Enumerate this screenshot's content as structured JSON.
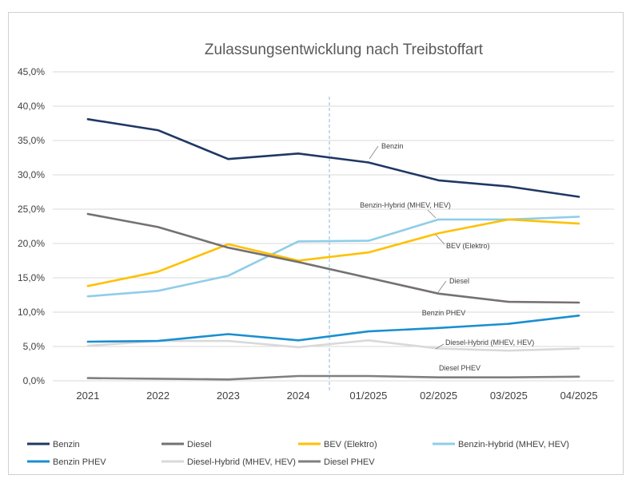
{
  "chart_data": {
    "type": "line",
    "title": "Zulassungsentwicklung nach Treibstoffart",
    "categories": [
      "2021",
      "2022",
      "2023",
      "2024",
      "01/2025",
      "02/2025",
      "03/2025",
      "04/2025"
    ],
    "y_ticks": [
      "0,0%",
      "5,0%",
      "10,0%",
      "15,0%",
      "20,0%",
      "25,0%",
      "30,0%",
      "35,0%",
      "40,0%",
      "45,0%"
    ],
    "ylim": [
      0,
      45
    ],
    "y_unit": "%",
    "grid": true,
    "legend_position": "bottom",
    "divider_after_category": "2024",
    "series": [
      {
        "name": "Benzin",
        "color": "#1f3864",
        "values": [
          38.1,
          36.5,
          32.3,
          33.1,
          31.8,
          29.2,
          28.3,
          26.8
        ],
        "label": "Benzin"
      },
      {
        "name": "Diesel",
        "color": "#767171",
        "values": [
          24.3,
          22.4,
          19.4,
          17.3,
          15.0,
          12.7,
          11.5,
          11.4
        ],
        "label": "Diesel"
      },
      {
        "name": "BEV (Elektro)",
        "color": "#ffc000",
        "values": [
          13.8,
          15.9,
          19.9,
          17.5,
          18.7,
          21.5,
          23.5,
          22.9
        ],
        "label": "BEV (Elektro)"
      },
      {
        "name": "Benzin-Hybrid (MHEV, HEV)",
        "color": "#8fcde8",
        "values": [
          12.3,
          13.1,
          15.3,
          20.3,
          20.4,
          23.5,
          23.5,
          23.9
        ],
        "label": "Benzin-Hybrid (MHEV, HEV)"
      },
      {
        "name": "Benzin PHEV",
        "color": "#1a8fd0",
        "values": [
          5.7,
          5.8,
          6.8,
          5.9,
          7.2,
          7.7,
          8.3,
          9.5
        ],
        "label": "Benzin PHEV"
      },
      {
        "name": "Diesel-Hybrid (MHEV, HEV)",
        "color": "#d9d9d9",
        "values": [
          5.1,
          5.8,
          5.8,
          4.9,
          5.9,
          4.7,
          4.4,
          4.7
        ],
        "label": "Diesel-Hybrid (MHEV, HEV)"
      },
      {
        "name": "Diesel PHEV",
        "color": "#7f7f7f",
        "values": [
          0.4,
          0.3,
          0.2,
          0.7,
          0.7,
          0.5,
          0.5,
          0.6
        ],
        "label": "Diesel PHEV"
      }
    ]
  }
}
